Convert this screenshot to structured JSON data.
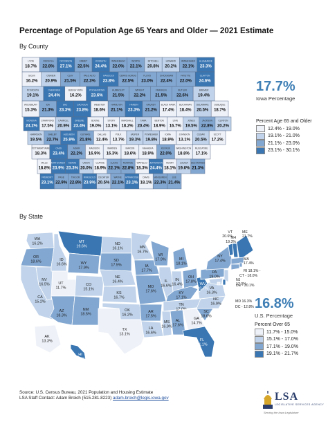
{
  "title": "Percentage of Population Age 65 Years and Older — 2021 Estimate",
  "county_section": {
    "heading": "By County",
    "summary_value": "17.7%",
    "summary_label": "Iowa Percentage",
    "legend_title": "Percent Age 65 and Older",
    "legend": [
      {
        "label": "12.4% - 19.0%",
        "color": "#eef1f8"
      },
      {
        "label": "19.1% - 21.0%",
        "color": "#c0d3ea"
      },
      {
        "label": "21.1% - 23.0%",
        "color": "#82a7d1"
      },
      {
        "label": "23.1% - 30.1%",
        "color": "#3976b2"
      }
    ]
  },
  "state_section": {
    "heading": "By State",
    "summary_value": "16.8%",
    "summary_label": "U.S. Percentage",
    "legend_title": "Percent Over 65",
    "legend": [
      {
        "label": "11.7% - 15.0%",
        "color": "#eef1f8"
      },
      {
        "label": "15.1% - 17.0%",
        "color": "#c0d3ea"
      },
      {
        "label": "17.1% - 19.0%",
        "color": "#82a7d1"
      },
      {
        "label": "19.1% - 21.7%",
        "color": "#3976b2"
      }
    ]
  },
  "counties": [
    {
      "row": 0,
      "cells": [
        [
          "LYON",
          "18.7%"
        ],
        [
          "OSCEOLA",
          "22.8%"
        ],
        [
          "DICKINSON",
          "27.1%"
        ],
        [
          "EMMET",
          "22.5%"
        ],
        [
          "KOSSUTH",
          "24.4%"
        ],
        [
          "WINNEBAGO",
          "22.0%"
        ],
        [
          "WORTH",
          "22.1%"
        ],
        [
          "MITCHELL",
          "20.8%"
        ],
        [
          "HOWARD",
          "20.2%"
        ],
        [
          "WINNESHIEK",
          "22.1%"
        ],
        [
          "ALLAMAKEE",
          "23.3%"
        ]
      ]
    },
    {
      "row": 1,
      "cells": [
        [
          "SIOUX",
          "16.2%"
        ],
        [
          "O'BRIEN",
          "20.9%"
        ],
        [
          "CLAY",
          "21.5%"
        ],
        [
          "PALO ALTO",
          "22.3%"
        ],
        [
          "HANCOCK",
          "23.8%"
        ],
        [
          "CERRO GORDO",
          "22.5%"
        ],
        [
          "FLOYD",
          "23.0%"
        ],
        [
          "CHICKASAW",
          "22.4%"
        ],
        [
          "FAYETTE",
          "22.0%"
        ],
        [
          "CLAYTON",
          "24.6%"
        ]
      ]
    },
    {
      "row": 2,
      "cells": [
        [
          "PLYMOUTH",
          "19.1%"
        ],
        [
          "CHEROKEE",
          "24.4%"
        ],
        [
          "BUENA VISTA",
          "16.2%"
        ],
        [
          "POCAHONTAS",
          "23.6%"
        ],
        [
          "HUMBOLDT",
          "21.5%"
        ],
        [
          "WRIGHT",
          "22.2%"
        ],
        [
          "FRANKLIN",
          "21.5%"
        ],
        [
          "BUTLER",
          "22.6%"
        ],
        [
          "BREMER",
          "19.4%"
        ]
      ]
    },
    {
      "row": 3,
      "cells": [
        [
          "WOODBURY",
          "15.3%"
        ],
        [
          "IDA",
          "21.3%"
        ],
        [
          "SAC",
          "23.3%"
        ],
        [
          "CALHOUN",
          "23.8%"
        ],
        [
          "WEBSTER",
          "18.6%"
        ],
        [
          "HAMILTON",
          "21.1%"
        ],
        [
          "HARDIN",
          "23.3%"
        ],
        [
          "GRUNDY",
          "21.2%"
        ],
        [
          "BLACK HAWK",
          "17.4%"
        ],
        [
          "BUCHANAN",
          "18.4%"
        ],
        [
          "DELAWARE",
          "20.5%"
        ],
        [
          "DUBUQUE",
          "18.7%"
        ]
      ]
    },
    {
      "row": 4,
      "cells": [
        [
          "MONONA",
          "24.2%"
        ],
        [
          "CRAWFORD",
          "17.5%"
        ],
        [
          "CARROLL",
          "20.9%"
        ],
        [
          "GREENE",
          "23.4%"
        ],
        [
          "BOONE",
          "19.0%"
        ],
        [
          "STORY",
          "13.1%"
        ],
        [
          "MARSHALL",
          "18.2%"
        ],
        [
          "TAMA",
          "20.4%"
        ],
        [
          "BENTON",
          "18.9%"
        ],
        [
          "LINN",
          "16.7%"
        ],
        [
          "JONES",
          "19.5%"
        ],
        [
          "JACKSON",
          "22.8%"
        ],
        [
          "CLINTON",
          "20.2%"
        ]
      ]
    },
    {
      "row": 5,
      "cells": [
        [
          "HARRISON",
          "19.5%"
        ],
        [
          "SHELBY",
          "22.7%"
        ],
        [
          "AUDUBON",
          "25.9%"
        ],
        [
          "GUTHRIE",
          "21.8%"
        ],
        [
          "DALLAS",
          "12.4%"
        ],
        [
          "POLK",
          "13.7%"
        ],
        [
          "JASPER",
          "19.3%"
        ],
        [
          "POWESHIEK",
          "19.8%"
        ],
        [
          "IOWA",
          "18.9%"
        ],
        [
          "JOHNSON",
          "13.1%"
        ],
        [
          "CEDAR",
          "20.5%"
        ],
        [
          "SCOTT",
          "17.2%"
        ]
      ]
    },
    {
      "row": 6,
      "cells": [
        [
          "POTTAWATTAMIE",
          "18.3%"
        ],
        [
          "CASS",
          "23.4%"
        ],
        [
          "ADAIR",
          "22.2%"
        ],
        [
          "MADISON",
          "16.9%"
        ],
        [
          "WARREN",
          "16.3%"
        ],
        [
          "MARION",
          "18.6%"
        ],
        [
          "MAHASKA",
          "18.9%"
        ],
        [
          "KEOKUK",
          "22.0%"
        ],
        [
          "WASHINGTON",
          "18.8%"
        ],
        [
          "MUSCATINE",
          "17.1%"
        ]
      ]
    },
    {
      "row": 7,
      "cells": [
        [
          "MILLS",
          "18.8%"
        ],
        [
          "MONTGOMERY",
          "23.9%"
        ],
        [
          "ADAMS",
          "23.3%"
        ],
        [
          "UNION",
          "20.0%"
        ],
        [
          "CLARKE",
          "18.9%"
        ],
        [
          "LUCAS",
          "22.1%"
        ],
        [
          "MONROE",
          "22.8%"
        ],
        [
          "WAPELLO",
          "18.3%"
        ],
        [
          "JEFFERSON",
          "24.4%"
        ],
        [
          "HENRY",
          "18.1%"
        ],
        [
          "LOUISA",
          "19.6%"
        ],
        [
          "DES MOINES",
          "21.3%"
        ]
      ]
    },
    {
      "row": 8,
      "cells": [
        [
          "FREMONT",
          "23.1%"
        ],
        [
          "PAGE",
          "22.9%"
        ],
        [
          "TAYLOR",
          "22.8%"
        ],
        [
          "RINGGOLD",
          "23.9%"
        ],
        [
          "DECATUR",
          "20.5%"
        ],
        [
          "WAYNE",
          "22.1%"
        ],
        [
          "APPANOOSE",
          "23.1%"
        ],
        [
          "DAVIS",
          "18.1%"
        ],
        [
          "VAN BUREN",
          "22.3%"
        ],
        [
          "LEE",
          "21.4%"
        ]
      ]
    }
  ],
  "states": [
    [
      "WA",
      "16.2%"
    ],
    [
      "OR",
      "18.6%"
    ],
    [
      "CA",
      "15.2%"
    ],
    [
      "ID",
      "16.6%"
    ],
    [
      "NV",
      "16.5%"
    ],
    [
      "AZ",
      "18.3%"
    ],
    [
      "UT",
      "11.7%"
    ],
    [
      "MT",
      "19.6%"
    ],
    [
      "WY",
      "17.9%"
    ],
    [
      "CO",
      "15.1%"
    ],
    [
      "NM",
      "18.5%"
    ],
    [
      "ND",
      "16.1%"
    ],
    [
      "SD",
      "17.5%"
    ],
    [
      "NE",
      "16.4%"
    ],
    [
      "KS",
      "16.7%"
    ],
    [
      "OK",
      "16.2%"
    ],
    [
      "TX",
      "13.1%"
    ],
    [
      "MN",
      "16.7%"
    ],
    [
      "IA",
      "17.7%"
    ],
    [
      "MO",
      "17.6%"
    ],
    [
      "AR",
      "17.5%"
    ],
    [
      "LA",
      "16.6%"
    ],
    [
      "WI",
      "17.9%"
    ],
    [
      "IL",
      "16.6%"
    ],
    [
      "MI",
      "18.1%"
    ],
    [
      "IN",
      "16.4%"
    ],
    [
      "OH",
      "17.8%"
    ],
    [
      "KY",
      "17.1%"
    ],
    [
      "TN",
      "17.0%"
    ],
    [
      "MS",
      "16.9%"
    ],
    [
      "AL",
      "17.6%"
    ],
    [
      "GA",
      "14.7%"
    ],
    [
      "FL",
      "21.1%"
    ],
    [
      "SC",
      "18.6%"
    ],
    [
      "NC",
      "16.9%"
    ],
    [
      "VA",
      "16.3%"
    ],
    [
      "WV",
      "20.7%"
    ],
    [
      "PA",
      "19.0%"
    ],
    [
      "NY",
      "17.4%"
    ],
    [
      "VT",
      "20.6%"
    ],
    [
      "NH",
      "19.3%"
    ],
    [
      "ME",
      "21.7%"
    ],
    [
      "MA",
      "17.4%"
    ],
    [
      "RI",
      "18.1%"
    ],
    [
      "CT",
      "18.0%"
    ],
    [
      "NJ",
      "17.0%"
    ],
    [
      "DE",
      "20.1%"
    ],
    [
      "MD",
      "16.3%"
    ],
    [
      "DC",
      "12.8%"
    ],
    [
      "AK",
      "13.3%"
    ],
    [
      "HI",
      "19.6%"
    ]
  ],
  "footer": {
    "source_line": "Source:  U.S. Census Bureau, 2021 Population and Housing Estimate",
    "contact_line": "LSA Staff Contact:  Adam Broich (515.281.8223)",
    "email": "adam.broich@legis.iowa.gov"
  },
  "logo": {
    "main": "LSA",
    "sub": "LEGISLATIVE SERVICES AGENCY",
    "tagline": "Serving the Iowa Legislature"
  }
}
